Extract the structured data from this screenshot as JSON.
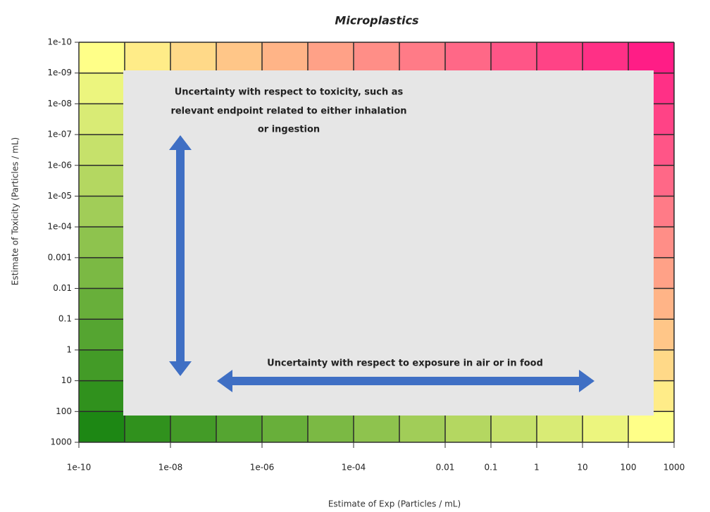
{
  "chart_data": {
    "type": "risk-matrix",
    "title": "Microplastics",
    "x_label": "Estimate of Exp  (Particles / mL)",
    "y_label": "Estimate of Toxicity  (Particles / mL)",
    "log_scale": true,
    "y_reversed": true,
    "xlim": [
      1e-10,
      1000
    ],
    "ylim": [
      1e-10,
      1000
    ],
    "xticks": [
      {
        "value": 1e-10,
        "label": "1e-10"
      },
      {
        "value": 1e-08,
        "label": "1e-08"
      },
      {
        "value": 1e-06,
        "label": "1e-06"
      },
      {
        "value": 0.0001,
        "label": "1e-04"
      },
      0.01,
      0.1,
      1,
      10,
      100,
      1000
    ],
    "yticks": [
      {
        "value": 1e-10,
        "label": "1e-10"
      },
      {
        "value": 1e-09,
        "label": "1e-09"
      },
      {
        "value": 1e-08,
        "label": "1e-08"
      },
      {
        "value": 1e-07,
        "label": "1e-07"
      },
      {
        "value": 1e-06,
        "label": "1e-06"
      },
      {
        "value": 1e-05,
        "label": "1e-05"
      },
      {
        "value": 0.0001,
        "label": "1e-04"
      },
      0.001,
      0.01,
      0.1,
      1,
      10,
      100,
      1000
    ],
    "gradient_colors": [
      "#0a7d0a",
      "#ffff88",
      "#ff0a86"
    ],
    "grid_color": "#2a2a2a",
    "annotations": {
      "toxicity": [
        "Uncertainty with respect to toxicity, such as",
        "relevant endpoint related to either inhalation",
        "or ingestion"
      ],
      "exposure": "Uncertainty with respect to exposure in air or in food"
    }
  }
}
